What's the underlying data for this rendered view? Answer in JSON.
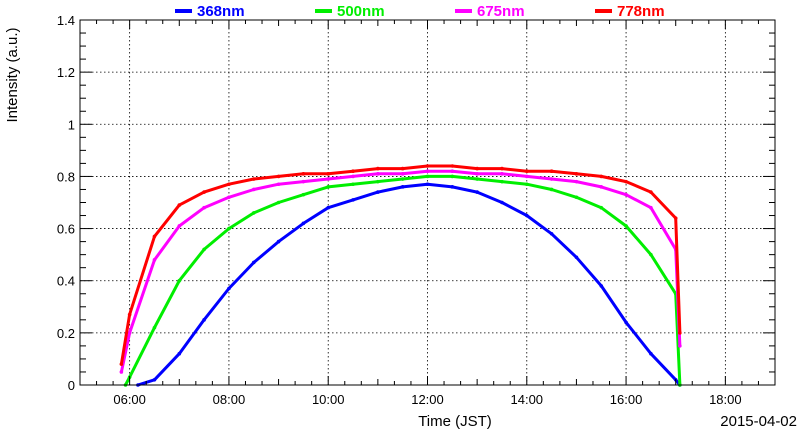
{
  "chart_data": {
    "type": "line",
    "xlabel": "Time (JST)",
    "ylabel": "Intensity (a.u.)",
    "date_label": "2015-04-02",
    "xlim": [
      "05:00",
      "19:00"
    ],
    "ylim": [
      0,
      1.4
    ],
    "x_ticks": [
      "06:00",
      "08:00",
      "10:00",
      "12:00",
      "14:00",
      "16:00",
      "18:00"
    ],
    "y_ticks": [
      "0",
      "0.2",
      "0.4",
      "0.6",
      "0.8",
      "1",
      "1.2",
      "1.4"
    ],
    "grid": true,
    "legend": "top",
    "series": [
      {
        "name": "368nm",
        "color": "#0000ff",
        "x": [
          "06:10",
          "06:30",
          "07:00",
          "07:30",
          "08:00",
          "08:30",
          "09:00",
          "09:30",
          "10:00",
          "10:30",
          "11:00",
          "11:30",
          "12:00",
          "12:30",
          "13:00",
          "13:30",
          "14:00",
          "14:30",
          "15:00",
          "15:30",
          "16:00",
          "16:30",
          "17:00",
          "17:05"
        ],
        "values": [
          0.0,
          0.02,
          0.12,
          0.25,
          0.37,
          0.47,
          0.55,
          0.62,
          0.68,
          0.71,
          0.74,
          0.76,
          0.77,
          0.76,
          0.74,
          0.7,
          0.65,
          0.58,
          0.49,
          0.38,
          0.24,
          0.12,
          0.02,
          0.0
        ]
      },
      {
        "name": "500nm",
        "color": "#00ee00",
        "x": [
          "05:55",
          "06:00",
          "06:30",
          "07:00",
          "07:30",
          "08:00",
          "08:30",
          "09:00",
          "09:30",
          "10:00",
          "10:30",
          "11:00",
          "11:30",
          "12:00",
          "12:30",
          "13:00",
          "13:30",
          "14:00",
          "14:30",
          "15:00",
          "15:30",
          "16:00",
          "16:30",
          "17:00",
          "17:05"
        ],
        "values": [
          0.0,
          0.03,
          0.22,
          0.4,
          0.52,
          0.6,
          0.66,
          0.7,
          0.73,
          0.76,
          0.77,
          0.78,
          0.79,
          0.8,
          0.8,
          0.79,
          0.78,
          0.77,
          0.75,
          0.72,
          0.68,
          0.61,
          0.5,
          0.35,
          0.0
        ]
      },
      {
        "name": "675nm",
        "color": "#ff00ff",
        "x": [
          "05:50",
          "06:00",
          "06:30",
          "07:00",
          "07:30",
          "08:00",
          "08:30",
          "09:00",
          "09:30",
          "10:00",
          "10:30",
          "11:00",
          "11:30",
          "12:00",
          "12:30",
          "13:00",
          "13:30",
          "14:00",
          "14:30",
          "15:00",
          "15:30",
          "16:00",
          "16:30",
          "17:00",
          "17:05"
        ],
        "values": [
          0.05,
          0.2,
          0.48,
          0.61,
          0.68,
          0.72,
          0.75,
          0.77,
          0.78,
          0.79,
          0.8,
          0.81,
          0.81,
          0.82,
          0.82,
          0.81,
          0.81,
          0.8,
          0.79,
          0.78,
          0.76,
          0.73,
          0.68,
          0.52,
          0.15
        ]
      },
      {
        "name": "778nm",
        "color": "#ff0000",
        "x": [
          "05:50",
          "06:00",
          "06:30",
          "07:00",
          "07:30",
          "08:00",
          "08:30",
          "09:00",
          "09:30",
          "10:00",
          "10:30",
          "11:00",
          "11:30",
          "12:00",
          "12:30",
          "13:00",
          "13:30",
          "14:00",
          "14:30",
          "15:00",
          "15:30",
          "16:00",
          "16:30",
          "17:00",
          "17:05"
        ],
        "values": [
          0.08,
          0.27,
          0.57,
          0.69,
          0.74,
          0.77,
          0.79,
          0.8,
          0.81,
          0.81,
          0.82,
          0.83,
          0.83,
          0.84,
          0.84,
          0.83,
          0.83,
          0.82,
          0.82,
          0.81,
          0.8,
          0.78,
          0.74,
          0.64,
          0.2
        ]
      }
    ]
  }
}
